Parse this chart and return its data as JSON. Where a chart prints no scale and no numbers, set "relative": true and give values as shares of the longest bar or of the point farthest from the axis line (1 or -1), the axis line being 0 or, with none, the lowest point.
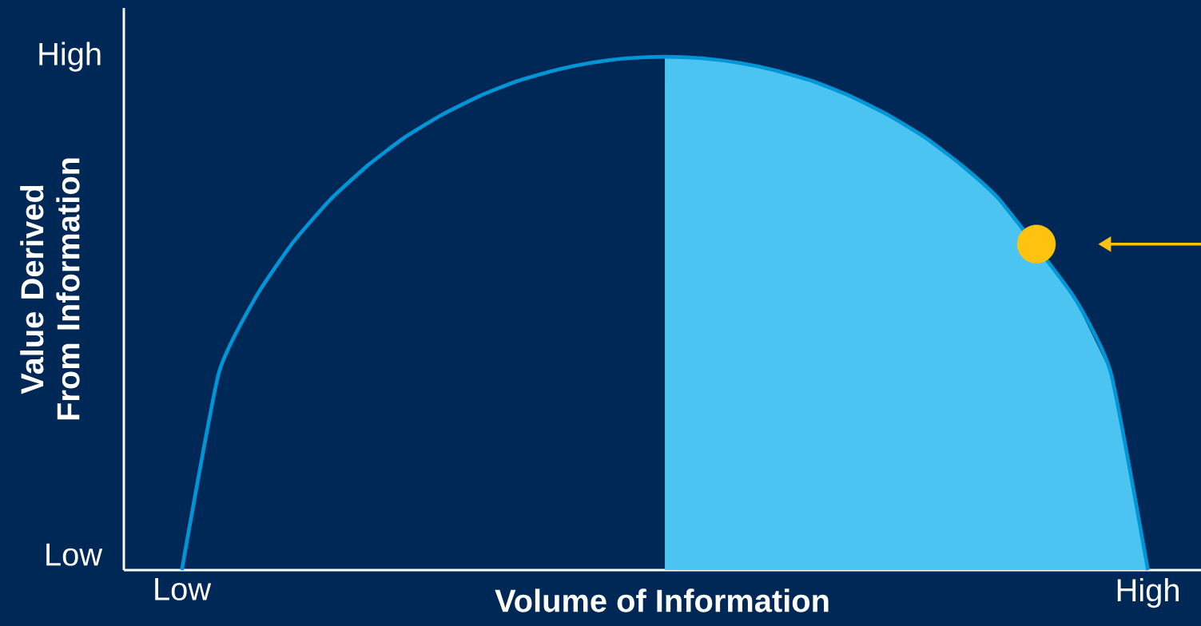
{
  "chart_data": {
    "type": "line",
    "relative": true,
    "xlabel": "Volume of Information",
    "ylabel": "Value Derived From Information",
    "categories": [
      "Low",
      null,
      null,
      null,
      null,
      null,
      null,
      null,
      null,
      null,
      null,
      null,
      null,
      null,
      null,
      null,
      null,
      null,
      null,
      null,
      null,
      null,
      null,
      null,
      null,
      null,
      "High"
    ],
    "annotations": [
      "Low",
      "High"
    ],
    "line_style": "solid",
    "series": [
      {
        "type": "area",
        "color": "#4bc4f2",
        "values": [
          null,
          null,
          null,
          null,
          null,
          null,
          null,
          null,
          null,
          null,
          null,
          null,
          null,
          1,
          0.997,
          0.988,
          0.973,
          0.952,
          0.923,
          0.887,
          0.843,
          0.788,
          0.722,
          null,
          0.533,
          0.385,
          0
        ]
      },
      {
        "color": "#0096d6",
        "values": [
          0,
          0.385,
          0.533,
          0.639,
          0.722,
          0.788,
          0.843,
          0.887,
          0.923,
          0.952,
          0.973,
          0.988,
          0.997,
          1,
          0.997,
          0.988,
          0.973,
          0.952,
          0.923,
          0.887,
          0.843,
          0.788,
          0.722,
          null,
          0.533,
          0.385,
          0
        ]
      },
      {
        "type": "scatter",
        "color": "#ffc20e",
        "marker": "circle",
        "values": [
          null,
          null,
          null,
          null,
          null,
          null,
          null,
          null,
          null,
          null,
          null,
          null,
          null,
          null,
          null,
          null,
          null,
          null,
          null,
          null,
          null,
          null,
          null,
          0.635,
          null,
          null,
          null
        ]
      }
    ]
  }
}
